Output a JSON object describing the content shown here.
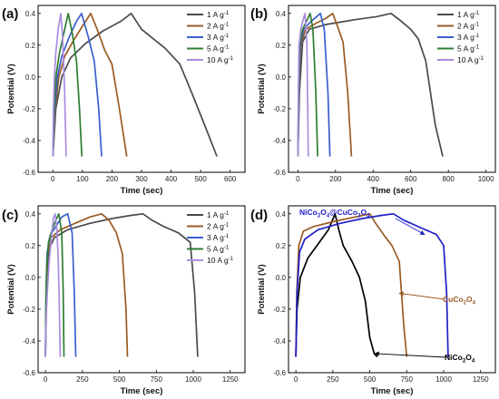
{
  "chart_data": [
    {
      "panel": "(a)",
      "type": "line",
      "xlabel": "Time (sec)",
      "ylabel": "Potential (V)",
      "xlim": [
        -50,
        650
      ],
      "ylim": [
        -0.6,
        0.45
      ],
      "xticks": [
        0,
        100,
        200,
        300,
        400,
        500,
        600
      ],
      "yticks": [
        -0.6,
        -0.4,
        -0.2,
        0.0,
        0.2,
        0.4
      ],
      "legend_position": "top-right",
      "series": [
        {
          "name": "1 A g-1",
          "color": "#4a4a4a",
          "x": [
            0,
            10,
            30,
            60,
            110,
            170,
            230,
            265,
            300,
            380,
            430,
            470,
            530,
            555
          ],
          "y": [
            -0.5,
            -0.2,
            0.0,
            0.12,
            0.21,
            0.29,
            0.35,
            0.4,
            0.3,
            0.18,
            0.08,
            -0.1,
            -0.38,
            -0.5
          ]
        },
        {
          "name": "2 A g-1",
          "color": "#9a5a22",
          "x": [
            0,
            8,
            20,
            40,
            70,
            100,
            128,
            150,
            175,
            200,
            225,
            250
          ],
          "y": [
            -0.5,
            -0.2,
            0.0,
            0.13,
            0.23,
            0.32,
            0.4,
            0.3,
            0.17,
            0.08,
            -0.2,
            -0.5
          ]
        },
        {
          "name": "3 A g-1",
          "color": "#3a5fcd",
          "x": [
            0,
            6,
            15,
            30,
            55,
            80,
            97,
            120,
            140,
            155,
            165
          ],
          "y": [
            -0.5,
            -0.2,
            0.0,
            0.13,
            0.25,
            0.35,
            0.4,
            0.25,
            0.1,
            -0.2,
            -0.5
          ]
        },
        {
          "name": "5 A g-1",
          "color": "#2e7d32",
          "x": [
            0,
            4,
            10,
            22,
            40,
            52,
            65,
            80,
            90,
            98
          ],
          "y": [
            -0.5,
            -0.2,
            0.0,
            0.15,
            0.3,
            0.4,
            0.28,
            0.1,
            -0.2,
            -0.5
          ]
        },
        {
          "name": "10 A g-1",
          "color": "#a98de0",
          "x": [
            0,
            2,
            5,
            10,
            18,
            27,
            33,
            40,
            45
          ],
          "y": [
            -0.5,
            -0.2,
            0.0,
            0.15,
            0.3,
            0.4,
            0.25,
            -0.1,
            -0.5
          ]
        }
      ]
    },
    {
      "panel": "(b)",
      "type": "line",
      "xlabel": "Time (sec)",
      "ylabel": "Potential (V)",
      "xlim": [
        -50,
        1050
      ],
      "ylim": [
        -0.6,
        0.45
      ],
      "xticks": [
        0,
        200,
        400,
        600,
        800,
        1000
      ],
      "yticks": [
        -0.6,
        -0.4,
        -0.2,
        0.0,
        0.2,
        0.4
      ],
      "legend_position": "top-right",
      "series": [
        {
          "name": "1 A g-1",
          "color": "#4a4a4a",
          "x": [
            0,
            8,
            25,
            60,
            150,
            300,
            420,
            495,
            540,
            600,
            640,
            680,
            730,
            770
          ],
          "y": [
            -0.5,
            -0.1,
            0.22,
            0.3,
            0.33,
            0.36,
            0.38,
            0.4,
            0.36,
            0.3,
            0.24,
            0.1,
            -0.3,
            -0.5
          ]
        },
        {
          "name": "2 A g-1",
          "color": "#9a5a22",
          "x": [
            0,
            5,
            15,
            40,
            100,
            150,
            185,
            210,
            240,
            265,
            285
          ],
          "y": [
            -0.5,
            -0.1,
            0.2,
            0.3,
            0.34,
            0.37,
            0.4,
            0.32,
            0.22,
            -0.1,
            -0.5
          ]
        },
        {
          "name": "3 A g-1",
          "color": "#3a5fcd",
          "x": [
            0,
            4,
            12,
            30,
            70,
            100,
            120,
            140,
            160,
            170
          ],
          "y": [
            -0.5,
            -0.1,
            0.2,
            0.3,
            0.35,
            0.38,
            0.4,
            0.3,
            -0.1,
            -0.5
          ]
        },
        {
          "name": "5 A g-1",
          "color": "#2e7d32",
          "x": [
            0,
            3,
            9,
            25,
            50,
            65,
            80,
            95,
            105
          ],
          "y": [
            -0.5,
            -0.1,
            0.2,
            0.3,
            0.36,
            0.4,
            0.3,
            -0.1,
            -0.5
          ]
        },
        {
          "name": "10 A g-1",
          "color": "#a98de0",
          "x": [
            0,
            2,
            6,
            15,
            30,
            38,
            48,
            55
          ],
          "y": [
            -0.5,
            -0.1,
            0.2,
            0.3,
            0.37,
            0.4,
            0.2,
            -0.5
          ]
        }
      ]
    },
    {
      "panel": "(c)",
      "type": "line",
      "xlabel": "Time (sec)",
      "ylabel": "Potential (V)",
      "xlim": [
        -50,
        1350
      ],
      "ylim": [
        -0.6,
        0.45
      ],
      "xticks": [
        0,
        250,
        500,
        750,
        1000,
        1250
      ],
      "yticks": [
        -0.6,
        -0.4,
        -0.2,
        0.0,
        0.2,
        0.4
      ],
      "legend_position": "top-right",
      "series": [
        {
          "name": "1 A g-1",
          "color": "#4a4a4a",
          "x": [
            0,
            8,
            25,
            60,
            150,
            300,
            450,
            580,
            660,
            720,
            800,
            900,
            980,
            1010,
            1030
          ],
          "y": [
            -0.5,
            -0.1,
            0.18,
            0.25,
            0.3,
            0.34,
            0.37,
            0.39,
            0.4,
            0.36,
            0.32,
            0.28,
            0.22,
            -0.1,
            -0.5
          ]
        },
        {
          "name": "2 A g-1",
          "color": "#9a5a22",
          "x": [
            0,
            5,
            15,
            40,
            100,
            200,
            300,
            380,
            430,
            480,
            520,
            545,
            555
          ],
          "y": [
            -0.5,
            -0.1,
            0.15,
            0.25,
            0.3,
            0.34,
            0.38,
            0.4,
            0.36,
            0.28,
            0.15,
            -0.2,
            -0.5
          ]
        },
        {
          "name": "3 A g-1",
          "color": "#3a5fcd",
          "x": [
            0,
            4,
            10,
            30,
            70,
            110,
            150,
            180,
            195,
            205
          ],
          "y": [
            -0.5,
            -0.1,
            0.15,
            0.26,
            0.32,
            0.38,
            0.4,
            0.28,
            -0.1,
            -0.5
          ]
        },
        {
          "name": "5 A g-1",
          "color": "#2e7d32",
          "x": [
            0,
            3,
            8,
            20,
            45,
            70,
            90,
            110,
            120,
            125
          ],
          "y": [
            -0.5,
            -0.15,
            0.05,
            0.22,
            0.3,
            0.36,
            0.4,
            0.28,
            -0.1,
            -0.5
          ]
        },
        {
          "name": "10 A g-1",
          "color": "#a98de0",
          "x": [
            0,
            2,
            5,
            12,
            25,
            45,
            55,
            65,
            75,
            85,
            92,
            100
          ],
          "y": [
            -0.5,
            -0.35,
            -0.25,
            -0.1,
            0.1,
            0.3,
            0.38,
            0.4,
            0.32,
            0.15,
            -0.1,
            -0.5
          ]
        }
      ]
    },
    {
      "panel": "(d)",
      "type": "line",
      "xlabel": "Time (sec)",
      "ylabel": "Potential (V)",
      "xlim": [
        -50,
        1350
      ],
      "ylim": [
        -0.6,
        0.45
      ],
      "xticks": [
        0,
        250,
        500,
        750,
        1000,
        1250
      ],
      "yticks": [
        -0.6,
        -0.4,
        -0.2,
        0.0,
        0.2,
        0.4
      ],
      "series": [
        {
          "name": "NiCo2O4",
          "color": "#000000",
          "x": [
            0,
            8,
            30,
            80,
            150,
            220,
            265,
            290,
            320,
            380,
            430,
            470,
            500,
            530,
            550
          ],
          "y": [
            -0.5,
            -0.2,
            0.0,
            0.12,
            0.21,
            0.3,
            0.4,
            0.3,
            0.2,
            0.1,
            0.0,
            -0.15,
            -0.38,
            -0.48,
            -0.5
          ]
        },
        {
          "name": "CuCo2O4",
          "color": "#9a5a22",
          "x": [
            0,
            6,
            20,
            50,
            120,
            250,
            400,
            500,
            540,
            600,
            650,
            700,
            730,
            750
          ],
          "y": [
            -0.5,
            -0.1,
            0.2,
            0.29,
            0.32,
            0.35,
            0.38,
            0.4,
            0.34,
            0.26,
            0.2,
            0.1,
            -0.3,
            -0.5
          ]
        },
        {
          "name": "NiCo2O4@CuCo2O4",
          "color": "#2020c8",
          "x": [
            0,
            8,
            25,
            60,
            150,
            300,
            450,
            580,
            660,
            730,
            850,
            950,
            1000,
            1020,
            1030
          ],
          "y": [
            -0.5,
            -0.1,
            0.16,
            0.24,
            0.3,
            0.34,
            0.37,
            0.39,
            0.4,
            0.36,
            0.31,
            0.27,
            0.2,
            -0.1,
            -0.5
          ]
        }
      ],
      "annotations": [
        {
          "text_main": "NiCo",
          "sub1": "2",
          "text_mid": "O",
          "sub2": "4",
          "text_mid2": "@CuCo",
          "sub3": "2",
          "text_mid3": "O",
          "sub4": "4",
          "color": "#2020c8",
          "target_x": 870,
          "target_y": 0.27
        },
        {
          "text_main": "CuCo",
          "sub1": "2",
          "text_mid": "O",
          "sub2": "4",
          "color": "#9a5a22",
          "target_x": 700,
          "target_y": -0.1
        },
        {
          "text_main": "NiCo",
          "sub1": "2",
          "text_mid": "O",
          "sub2": "4",
          "color": "#000000",
          "target_x": 535,
          "target_y": -0.48
        }
      ]
    }
  ],
  "panel_labels": [
    "(a)",
    "(b)",
    "(c)",
    "(d)"
  ],
  "axis_titles": {
    "x": "Time (sec)",
    "y": "Potential (V)"
  },
  "legend_labels": [
    "1 A g",
    "2 A g",
    "3 A g",
    "5 A g",
    "10 A g"
  ],
  "legend_superscript": "-1"
}
